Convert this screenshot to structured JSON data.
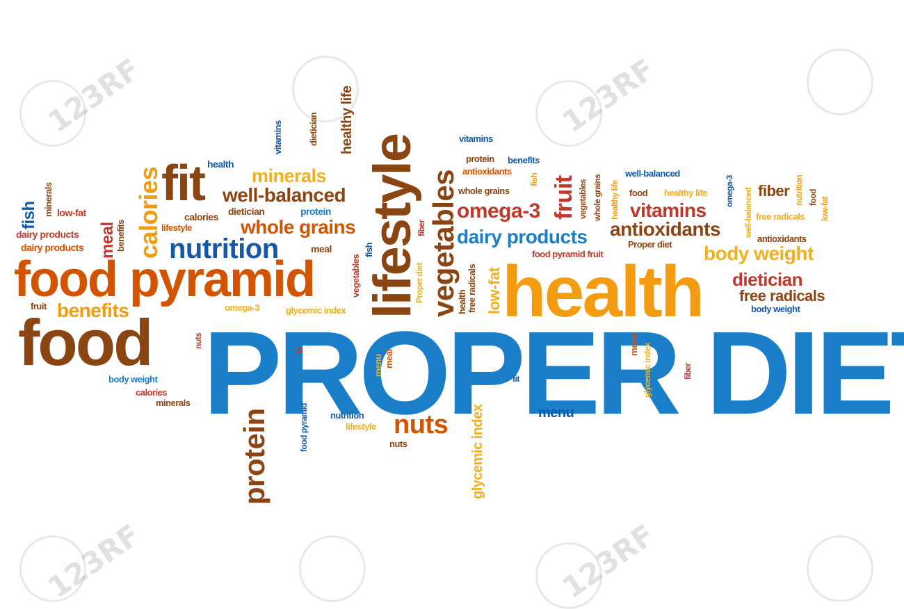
{
  "colors": {
    "blue": "#1a7fc8",
    "orange": "#f39c12",
    "dark_orange": "#d35400",
    "brown": "#8b4513",
    "red": "#c0392b",
    "dark_brown": "#7b3f1d",
    "gold": "#f2b01e",
    "navy": "#1558a6"
  },
  "watermark": {
    "text": "123RF"
  },
  "cloud": {
    "title": "PROPER DIET",
    "words": [
      "health",
      "food",
      "food pyramid",
      "lifestyle",
      "vegetables",
      "nutrition",
      "fit",
      "calories",
      "minerals",
      "well-balanced",
      "whole grains",
      "meal",
      "fish",
      "benefits",
      "dietician",
      "protein",
      "nuts",
      "fruit",
      "omega-3",
      "vitamins",
      "antioxidants",
      "dairy products",
      "body weight",
      "free radicals",
      "fiber",
      "low-fat",
      "glycemic index",
      "healthy life",
      "menu",
      "Proper diet",
      "food pyramid fruit"
    ]
  }
}
